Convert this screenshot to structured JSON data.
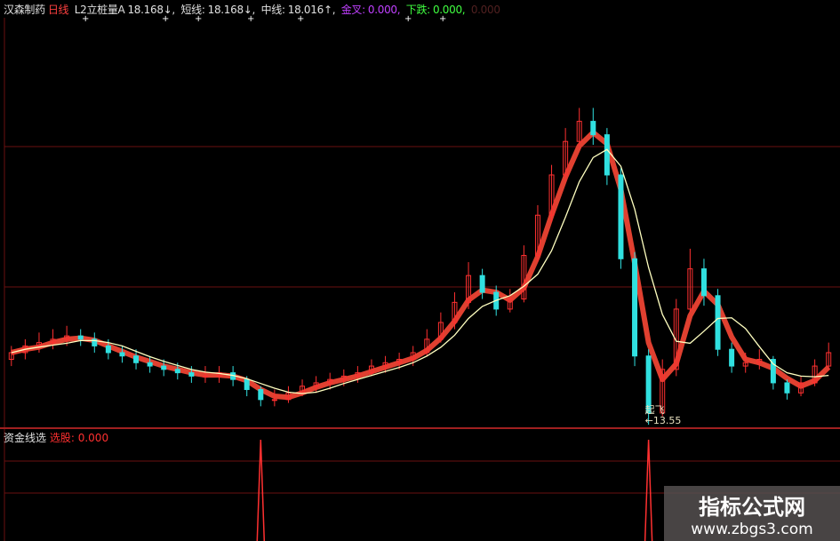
{
  "header": {
    "stock_name": "汉森制药",
    "period": "日线",
    "ind1_label": "L2立桩量A",
    "ind1_value": "18.168↓,",
    "short_label": "短线:",
    "short_value": "18.168↓,",
    "mid_label": "中线:",
    "mid_value": "18.016↑,",
    "golden_label": "金叉:",
    "golden_value": "0.000,",
    "fall_label": "下跌:",
    "fall_value": "0.000,",
    "extra_value": "0.000"
  },
  "lower_panel": {
    "name": "资金线选",
    "label": "选股:",
    "value": "0.000"
  },
  "annotation": {
    "label": "起飞",
    "price": "←13.55"
  },
  "watermark": {
    "title": "指标公式网",
    "url": "www.zbgs3.com"
  },
  "colors": {
    "up": "#ff3030",
    "down": "#30e0e0",
    "ma": "#ffffc0",
    "ribbon": "#e04030",
    "grid": "#6a1010",
    "golden": "#c040ff",
    "fall": "#40ff40"
  },
  "chart_data": {
    "type": "candlestick",
    "ylim": [
      13.5,
      25
    ],
    "ohlc": [
      [
        15.5,
        15.9,
        15.3,
        15.7
      ],
      [
        15.7,
        16.1,
        15.5,
        15.9
      ],
      [
        15.9,
        16.3,
        15.7,
        16.0
      ],
      [
        16.0,
        16.4,
        15.8,
        16.1
      ],
      [
        16.1,
        16.5,
        15.9,
        16.2
      ],
      [
        16.2,
        16.4,
        15.9,
        16.1
      ],
      [
        16.1,
        16.3,
        15.7,
        15.9
      ],
      [
        15.9,
        16.1,
        15.5,
        15.7
      ],
      [
        15.7,
        15.9,
        15.4,
        15.6
      ],
      [
        15.6,
        15.8,
        15.2,
        15.4
      ],
      [
        15.4,
        15.6,
        15.1,
        15.3
      ],
      [
        15.3,
        15.5,
        15.0,
        15.2
      ],
      [
        15.2,
        15.4,
        14.9,
        15.1
      ],
      [
        15.1,
        15.3,
        14.8,
        15.0
      ],
      [
        15.0,
        15.3,
        14.8,
        15.0
      ],
      [
        15.0,
        15.3,
        14.8,
        15.1
      ],
      [
        15.1,
        15.3,
        14.7,
        14.9
      ],
      [
        14.9,
        15.0,
        14.4,
        14.6
      ],
      [
        14.6,
        14.7,
        14.1,
        14.3
      ],
      [
        14.3,
        14.6,
        14.1,
        14.3
      ],
      [
        14.3,
        14.7,
        14.2,
        14.5
      ],
      [
        14.5,
        14.9,
        14.4,
        14.7
      ],
      [
        14.7,
        15.0,
        14.5,
        14.8
      ],
      [
        14.8,
        15.1,
        14.6,
        14.9
      ],
      [
        14.9,
        15.2,
        14.7,
        15.0
      ],
      [
        15.0,
        15.3,
        14.8,
        15.1
      ],
      [
        15.1,
        15.5,
        15.0,
        15.3
      ],
      [
        15.3,
        15.6,
        15.1,
        15.4
      ],
      [
        15.4,
        15.7,
        15.2,
        15.5
      ],
      [
        15.5,
        15.9,
        15.3,
        15.7
      ],
      [
        15.7,
        16.4,
        15.6,
        16.1
      ],
      [
        16.1,
        16.9,
        16.0,
        16.6
      ],
      [
        16.6,
        17.5,
        16.4,
        17.2
      ],
      [
        17.2,
        18.4,
        17.0,
        18.0
      ],
      [
        18.0,
        18.2,
        17.3,
        17.5
      ],
      [
        17.5,
        17.7,
        16.8,
        17.0
      ],
      [
        17.0,
        17.6,
        16.9,
        17.3
      ],
      [
        17.3,
        18.9,
        17.2,
        18.6
      ],
      [
        18.6,
        20.1,
        18.4,
        19.8
      ],
      [
        19.8,
        21.3,
        19.6,
        21.0
      ],
      [
        21.0,
        22.4,
        20.8,
        22.0
      ],
      [
        22.0,
        23.0,
        21.8,
        22.6
      ],
      [
        22.6,
        23.0,
        21.9,
        22.2
      ],
      [
        22.2,
        22.4,
        20.7,
        21.0
      ],
      [
        21.0,
        21.2,
        18.2,
        18.5
      ],
      [
        18.5,
        18.7,
        15.3,
        15.6
      ],
      [
        15.6,
        15.8,
        13.55,
        13.9
      ],
      [
        13.9,
        15.5,
        13.8,
        15.2
      ],
      [
        15.2,
        17.3,
        15.0,
        17.0
      ],
      [
        17.0,
        18.8,
        16.9,
        18.2
      ],
      [
        18.2,
        18.5,
        17.1,
        17.4
      ],
      [
        17.4,
        17.6,
        15.6,
        15.8
      ],
      [
        15.8,
        16.0,
        15.1,
        15.3
      ],
      [
        15.3,
        15.7,
        15.1,
        15.4
      ],
      [
        15.4,
        15.8,
        15.2,
        15.5
      ],
      [
        15.5,
        15.6,
        14.6,
        14.8
      ],
      [
        14.8,
        14.9,
        14.3,
        14.5
      ],
      [
        14.5,
        15.0,
        14.4,
        14.8
      ],
      [
        14.8,
        15.5,
        14.7,
        15.3
      ],
      [
        15.3,
        16.0,
        15.2,
        15.7
      ]
    ],
    "signal_candles": [
      19,
      47
    ],
    "low_marker": {
      "candle": 47,
      "price": 13.55
    }
  }
}
